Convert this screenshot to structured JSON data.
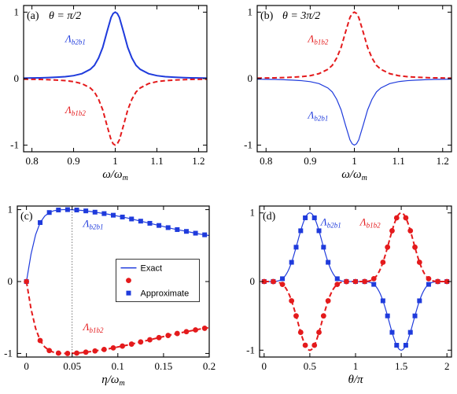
{
  "colors": {
    "blue": "#1f3bdc",
    "red": "#e41a1c"
  },
  "chart_data": [
    {
      "type": "line",
      "panel_label": "(a)",
      "title": "θ = π/2",
      "xlabel": "ω/ω",
      "xlabel_sub": "m",
      "xlim": [
        0.78,
        1.22
      ],
      "ylim": [
        -1.1,
        1.1
      ],
      "xticks": [
        0.8,
        0.9,
        1.0,
        1.1,
        1.2
      ],
      "xtick_labels": [
        "0.8",
        "0.9",
        "1",
        "1.1",
        "1.2"
      ],
      "yticks": [
        -1,
        0,
        1
      ],
      "ytick_labels": [
        "-1",
        "0",
        "1"
      ],
      "series": [
        {
          "label_main": "Λ",
          "label_sub": "b2b1",
          "color": "blue",
          "style": "solid",
          "width": 2,
          "x": [
            0.78,
            0.8,
            0.82,
            0.84,
            0.86,
            0.88,
            0.9,
            0.92,
            0.94,
            0.95,
            0.96,
            0.97,
            0.98,
            0.99,
            0.995,
            1.0,
            1.005,
            1.01,
            1.02,
            1.03,
            1.04,
            1.05,
            1.06,
            1.08,
            1.1,
            1.12,
            1.14,
            1.16,
            1.18,
            1.2,
            1.22
          ],
          "y": [
            0.008,
            0.01,
            0.012,
            0.016,
            0.022,
            0.03,
            0.045,
            0.075,
            0.14,
            0.2,
            0.31,
            0.47,
            0.7,
            0.92,
            0.98,
            1.0,
            0.98,
            0.92,
            0.7,
            0.47,
            0.31,
            0.2,
            0.14,
            0.075,
            0.045,
            0.03,
            0.022,
            0.016,
            0.012,
            0.01,
            0.008
          ]
        },
        {
          "label_main": "Λ",
          "label_sub": "b1b2",
          "color": "red",
          "style": "dashed",
          "width": 2,
          "x": [
            0.78,
            0.8,
            0.82,
            0.84,
            0.86,
            0.88,
            0.9,
            0.92,
            0.94,
            0.95,
            0.96,
            0.97,
            0.98,
            0.99,
            0.995,
            1.0,
            1.005,
            1.01,
            1.02,
            1.03,
            1.04,
            1.05,
            1.06,
            1.08,
            1.1,
            1.12,
            1.14,
            1.16,
            1.18,
            1.2,
            1.22
          ],
          "y": [
            -0.008,
            -0.01,
            -0.012,
            -0.016,
            -0.022,
            -0.03,
            -0.045,
            -0.075,
            -0.14,
            -0.2,
            -0.31,
            -0.47,
            -0.7,
            -0.92,
            -0.98,
            -1.0,
            -0.98,
            -0.92,
            -0.7,
            -0.47,
            -0.31,
            -0.2,
            -0.14,
            -0.075,
            -0.045,
            -0.03,
            -0.022,
            -0.016,
            -0.012,
            -0.01,
            -0.008
          ]
        }
      ],
      "labels": [
        {
          "series": 0,
          "x": 0.88,
          "y": 0.55
        },
        {
          "series": 1,
          "x": 0.88,
          "y": -0.52
        }
      ]
    },
    {
      "type": "line",
      "panel_label": "(b)",
      "title": "θ = 3π/2",
      "xlabel": "ω/ω",
      "xlabel_sub": "m",
      "xlim": [
        0.78,
        1.22
      ],
      "ylim": [
        -1.1,
        1.1
      ],
      "xticks": [
        0.8,
        0.9,
        1.0,
        1.1,
        1.2
      ],
      "xtick_labels": [
        "0.8",
        "0.9",
        "1",
        "1.1",
        "1.2"
      ],
      "yticks": [
        -1,
        0,
        1
      ],
      "ytick_labels": [
        "-1",
        "0",
        "1"
      ],
      "series": [
        {
          "label_main": "Λ",
          "label_sub": "b1b2",
          "color": "red",
          "style": "dashed",
          "width": 2,
          "x": [
            0.78,
            0.8,
            0.82,
            0.84,
            0.86,
            0.88,
            0.9,
            0.92,
            0.94,
            0.95,
            0.96,
            0.97,
            0.98,
            0.99,
            0.995,
            1.0,
            1.005,
            1.01,
            1.02,
            1.03,
            1.04,
            1.05,
            1.06,
            1.08,
            1.1,
            1.12,
            1.14,
            1.16,
            1.18,
            1.2,
            1.22
          ],
          "y": [
            0.008,
            0.01,
            0.012,
            0.016,
            0.022,
            0.03,
            0.045,
            0.075,
            0.14,
            0.2,
            0.31,
            0.47,
            0.7,
            0.92,
            0.98,
            1.0,
            0.98,
            0.92,
            0.7,
            0.47,
            0.31,
            0.2,
            0.14,
            0.075,
            0.045,
            0.03,
            0.022,
            0.016,
            0.012,
            0.01,
            0.008
          ]
        },
        {
          "label_main": "Λ",
          "label_sub": "b2b1",
          "color": "blue",
          "style": "solid",
          "width": 1.2,
          "x": [
            0.78,
            0.8,
            0.82,
            0.84,
            0.86,
            0.88,
            0.9,
            0.92,
            0.94,
            0.95,
            0.96,
            0.97,
            0.98,
            0.99,
            0.995,
            1.0,
            1.005,
            1.01,
            1.02,
            1.03,
            1.04,
            1.05,
            1.06,
            1.08,
            1.1,
            1.12,
            1.14,
            1.16,
            1.18,
            1.2,
            1.22
          ],
          "y": [
            -0.008,
            -0.01,
            -0.012,
            -0.016,
            -0.022,
            -0.03,
            -0.045,
            -0.075,
            -0.14,
            -0.2,
            -0.31,
            -0.47,
            -0.7,
            -0.92,
            -0.98,
            -1.0,
            -0.98,
            -0.92,
            -0.7,
            -0.47,
            -0.31,
            -0.2,
            -0.14,
            -0.075,
            -0.045,
            -0.03,
            -0.022,
            -0.016,
            -0.012,
            -0.01,
            -0.008
          ]
        }
      ],
      "labels": [
        {
          "series": 0,
          "x": 0.895,
          "y": 0.55
        },
        {
          "series": 1,
          "x": 0.895,
          "y": -0.6
        }
      ]
    },
    {
      "type": "line",
      "panel_label": "(c)",
      "title": "",
      "xlabel": "η/ω",
      "xlabel_sub": "m",
      "xlim": [
        -0.01,
        0.2
      ],
      "ylim": [
        -1.05,
        1.05
      ],
      "xticks": [
        0,
        0.05,
        0.1,
        0.15,
        0.2
      ],
      "xtick_labels": [
        "0",
        "0.05",
        "0.1",
        "0.15",
        "0.2"
      ],
      "yticks": [
        -1,
        0,
        1
      ],
      "ytick_labels": [
        "-1",
        "0",
        "1"
      ],
      "vline": 0.05,
      "series": [
        {
          "label_main": "Λ",
          "label_sub": "b2b1",
          "color": "blue",
          "style": "solid",
          "width": 1.2,
          "x": [
            0,
            0.005,
            0.01,
            0.015,
            0.02,
            0.025,
            0.03,
            0.035,
            0.04,
            0.045,
            0.05,
            0.055,
            0.06,
            0.07,
            0.08,
            0.09,
            0.1,
            0.11,
            0.12,
            0.13,
            0.14,
            0.15,
            0.16,
            0.17,
            0.18,
            0.19,
            0.2
          ],
          "y": [
            0,
            0.38,
            0.65,
            0.82,
            0.91,
            0.96,
            0.985,
            0.995,
            1.0,
            1.0,
            0.998,
            0.995,
            0.99,
            0.975,
            0.955,
            0.935,
            0.91,
            0.885,
            0.855,
            0.825,
            0.795,
            0.765,
            0.735,
            0.71,
            0.685,
            0.66,
            0.64
          ],
          "markers": {
            "shape": "square",
            "x": [
              0,
              0.015,
              0.025,
              0.035,
              0.045,
              0.055,
              0.065,
              0.075,
              0.085,
              0.095,
              0.105,
              0.115,
              0.125,
              0.135,
              0.145,
              0.155,
              0.165,
              0.175,
              0.185,
              0.195
            ]
          }
        },
        {
          "label_main": "Λ",
          "label_sub": "b1b2",
          "color": "red",
          "style": "dashed",
          "width": 2,
          "x": [
            0,
            0.005,
            0.01,
            0.015,
            0.02,
            0.025,
            0.03,
            0.035,
            0.04,
            0.045,
            0.05,
            0.055,
            0.06,
            0.07,
            0.08,
            0.09,
            0.1,
            0.11,
            0.12,
            0.13,
            0.14,
            0.15,
            0.16,
            0.17,
            0.18,
            0.19,
            0.2
          ],
          "y": [
            0,
            -0.38,
            -0.65,
            -0.82,
            -0.91,
            -0.96,
            -0.985,
            -0.995,
            -1.0,
            -1.0,
            -0.998,
            -0.995,
            -0.99,
            -0.975,
            -0.955,
            -0.935,
            -0.91,
            -0.885,
            -0.855,
            -0.825,
            -0.795,
            -0.765,
            -0.735,
            -0.71,
            -0.685,
            -0.66,
            -0.64
          ],
          "markers": {
            "shape": "circle",
            "x": [
              0,
              0.015,
              0.025,
              0.035,
              0.045,
              0.055,
              0.065,
              0.075,
              0.085,
              0.095,
              0.105,
              0.115,
              0.125,
              0.135,
              0.145,
              0.155,
              0.165,
              0.175,
              0.185,
              0.195
            ]
          }
        }
      ],
      "labels": [
        {
          "series": 0,
          "x": 0.062,
          "y": 0.76
        },
        {
          "series": 1,
          "x": 0.062,
          "y": -0.68
        }
      ],
      "legend": {
        "position": "center",
        "entries": [
          {
            "text": "Exact",
            "kind": "line",
            "color": "blue"
          },
          {
            "text": "",
            "kind": "circle",
            "color": "red"
          },
          {
            "text": "Approximate",
            "kind": "square",
            "color": "blue"
          }
        ]
      }
    },
    {
      "type": "line",
      "panel_label": "(d)",
      "title": "",
      "xlabel": "θ/π",
      "xlabel_sub": "",
      "xlim": [
        -0.05,
        2.05
      ],
      "ylim": [
        -1.1,
        1.1
      ],
      "xticks": [
        0,
        0.5,
        1,
        1.5,
        2
      ],
      "xtick_labels": [
        "0",
        "0.5",
        "1",
        "1.5",
        "2"
      ],
      "yticks": [
        -1,
        0,
        1
      ],
      "ytick_labels": [
        "-1",
        "0",
        "1"
      ],
      "series": [
        {
          "label_main": "Λ",
          "label_sub": "b2b1",
          "color": "blue",
          "style": "solid",
          "width": 1.2,
          "formula": "cusp_sin",
          "markers": {
            "shape": "square",
            "x": [
              0,
              0.1,
              0.2,
              0.3,
              0.35,
              0.4,
              0.45,
              0.55,
              0.6,
              0.65,
              0.7,
              0.8,
              0.9,
              1.0,
              1.1,
              1.2,
              1.3,
              1.35,
              1.4,
              1.45,
              1.55,
              1.6,
              1.65,
              1.7,
              1.8,
              1.9,
              2.0
            ]
          }
        },
        {
          "label_main": "Λ",
          "label_sub": "b1b2",
          "color": "red",
          "style": "dashed",
          "width": 2,
          "formula": "neg_cusp_sin",
          "markers": {
            "shape": "circle",
            "x": [
              0,
              0.1,
              0.2,
              0.3,
              0.35,
              0.4,
              0.45,
              0.55,
              0.6,
              0.65,
              0.7,
              0.8,
              0.9,
              1.0,
              1.1,
              1.2,
              1.3,
              1.35,
              1.4,
              1.45,
              1.55,
              1.6,
              1.65,
              1.7,
              1.8,
              1.9,
              2.0
            ]
          }
        }
      ],
      "labels": [
        {
          "series": 0,
          "x": 0.62,
          "y": 0.82
        },
        {
          "series": 1,
          "x": 1.05,
          "y": 0.82
        }
      ]
    }
  ]
}
